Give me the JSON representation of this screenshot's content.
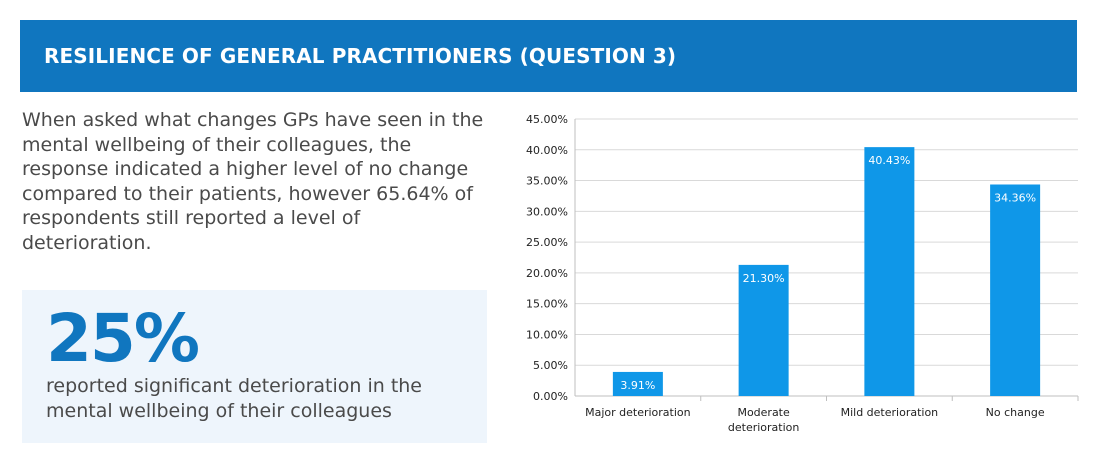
{
  "header": {
    "title": "RESILIENCE OF GENERAL PRACTITIONERS (QUESTION 3)"
  },
  "intro": {
    "text": "When asked what changes GPs have seen in the mental wellbeing of their colleagues, the response indicated a higher level of no change compared to their patients, however 65.64% of respondents still reported a level of deterioration."
  },
  "highlight": {
    "stat": "25%",
    "caption": "reported significant deterioration in the mental wellbeing of their colleagues"
  },
  "colors": {
    "header_bg": "#1076bf",
    "bar": "#0f97e8",
    "highlight_bg": "#eef5fc",
    "stat": "#1076bf"
  },
  "chart_data": {
    "type": "bar",
    "categories": [
      [
        "Major deterioration"
      ],
      [
        "Moderate",
        "deterioration"
      ],
      [
        "Mild deterioration"
      ],
      [
        "No change"
      ]
    ],
    "values": [
      3.91,
      21.3,
      40.43,
      34.36
    ],
    "data_labels": [
      "3.91%",
      "21.30%",
      "40.43%",
      "34.36%"
    ],
    "yticks": [
      "0.00%",
      "5.00%",
      "10.00%",
      "15.00%",
      "20.00%",
      "25.00%",
      "30.00%",
      "35.00%",
      "40.00%",
      "45.00%"
    ],
    "ylim": [
      0,
      45
    ],
    "grid": true,
    "legend": "none",
    "title": "",
    "xlabel": "",
    "ylabel": ""
  }
}
